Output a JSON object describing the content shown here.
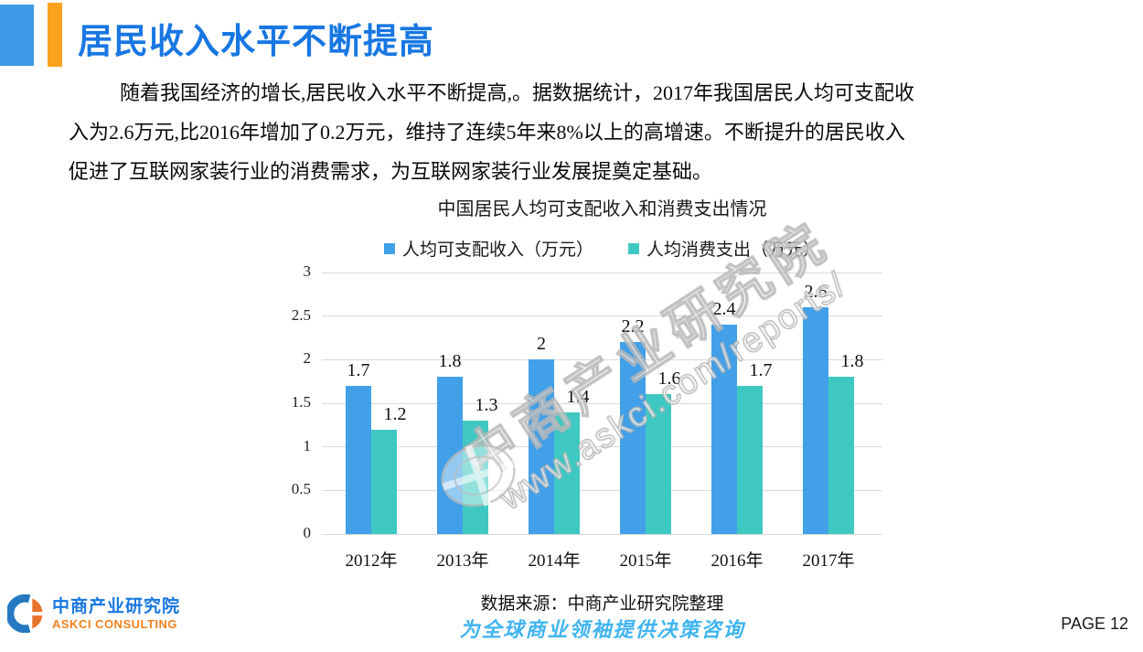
{
  "header": {
    "title": "居民收入水平不断提高"
  },
  "paragraph": {
    "lines": [
      "随着我国经济的增长,居民收入水平不断提高,。据数据统计，2017年我国居民人均可支配收",
      "入为2.6万元,比2016年增加了0.2万元，维持了连续5年来8%以上的高增速。不断提升的居民收入",
      "促进了互联网家装行业的消费需求，为互联网家装行业发展提奠定基础。"
    ]
  },
  "chart_data": {
    "type": "bar",
    "title": "中国居民人均可支配收入和消费支出情况",
    "categories": [
      "2012年",
      "2013年",
      "2014年",
      "2015年",
      "2016年",
      "2017年"
    ],
    "series": [
      {
        "name": "人均可支配收入（万元）",
        "values": [
          1.7,
          1.8,
          2,
          2.2,
          2.4,
          2.6
        ],
        "color": "#41A0E8"
      },
      {
        "name": "人均消费支出（万元）",
        "values": [
          1.2,
          1.3,
          1.4,
          1.6,
          1.7,
          1.8
        ],
        "color": "#3FC8C2"
      }
    ],
    "ylim": [
      0,
      3
    ],
    "yticks": [
      "0",
      "0.5",
      "1",
      "1.5",
      "2",
      "2.5",
      "3"
    ],
    "grid": true,
    "legend_position": "top"
  },
  "watermark": {
    "line1": "中商产业研究院",
    "line2": "www.askci.com/reports/"
  },
  "source": {
    "text": "数据来源：中商产业研究院整理"
  },
  "footer": {
    "logo_cn": "中商产业研究院",
    "logo_en": "ASKCI CONSULTING",
    "slogan": "为全球商业领袖提供决策咨询",
    "page": "PAGE 12"
  },
  "colors": {
    "title_blue": "#1877E2",
    "deco_blue": "#3E9AE8",
    "deco_orange": "#FAA21D",
    "bar_blue": "#41A0E8",
    "bar_teal": "#3FC8C2",
    "gridline": "#D9D9D9",
    "slogan_blue": "#3FB4F0",
    "logo_orange": "#F08220"
  }
}
